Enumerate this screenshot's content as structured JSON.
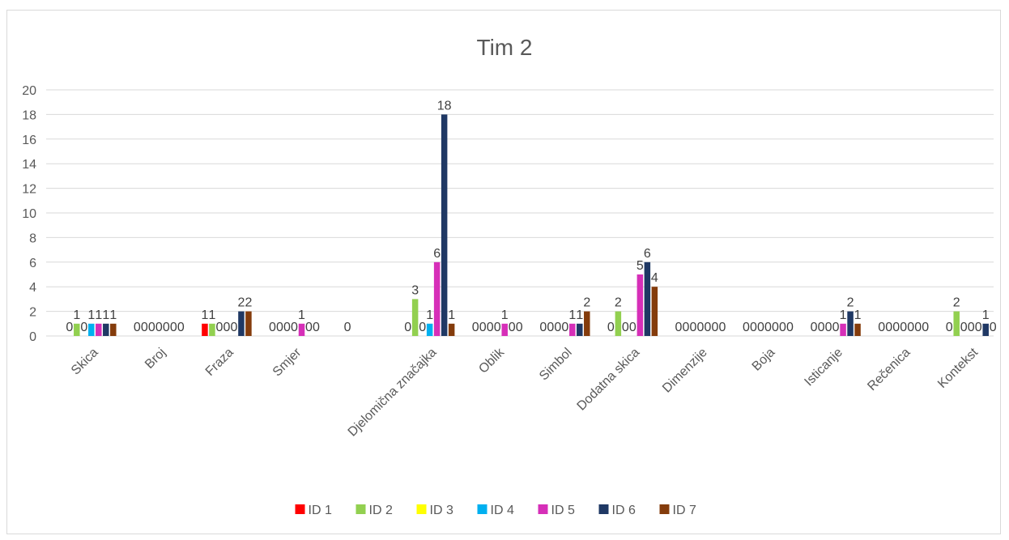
{
  "chart_data": {
    "type": "bar",
    "title": "Tim 2",
    "xlabel": "",
    "ylabel": "",
    "ylim": [
      0,
      20
    ],
    "yticks": [
      0,
      2,
      4,
      6,
      8,
      10,
      12,
      14,
      16,
      18,
      20
    ],
    "grid": true,
    "legend_position": "bottom",
    "categories": [
      "Skica",
      "Broj",
      "Fraza",
      "Smjer",
      "",
      "Djelomična značajka",
      "Oblik",
      "Simbol",
      "Dodatna skica",
      "Dimenzije",
      "Boja",
      "Isticanje",
      "Rečenica",
      "Kontekst"
    ],
    "series": [
      {
        "name": "ID 1",
        "color": "#ff0000",
        "values": [
          0,
          0,
          1,
          0,
          null,
          0,
          0,
          0,
          0,
          0,
          0,
          0,
          0,
          0
        ]
      },
      {
        "name": "ID 2",
        "color": "#92d050",
        "values": [
          1,
          0,
          1,
          0,
          0,
          3,
          0,
          0,
          2,
          0,
          0,
          0,
          0,
          2
        ]
      },
      {
        "name": "ID 3",
        "color": "#ffff00",
        "values": [
          0,
          0,
          0,
          0,
          null,
          0,
          0,
          0,
          0,
          0,
          0,
          0,
          0,
          0
        ]
      },
      {
        "name": "ID 4",
        "color": "#00b0f0",
        "values": [
          1,
          0,
          0,
          0,
          null,
          1,
          0,
          0,
          0,
          0,
          0,
          0,
          0,
          0
        ]
      },
      {
        "name": "ID 5",
        "color": "#d62fb8",
        "values": [
          1,
          0,
          0,
          1,
          null,
          6,
          1,
          1,
          5,
          0,
          0,
          1,
          0,
          0
        ]
      },
      {
        "name": "ID 6",
        "color": "#1f3864",
        "values": [
          1,
          0,
          2,
          0,
          null,
          18,
          0,
          1,
          6,
          0,
          0,
          2,
          0,
          1
        ]
      },
      {
        "name": "ID 7",
        "color": "#843c0c",
        "values": [
          1,
          0,
          2,
          0,
          null,
          1,
          0,
          2,
          4,
          0,
          0,
          1,
          0,
          0
        ]
      }
    ]
  }
}
